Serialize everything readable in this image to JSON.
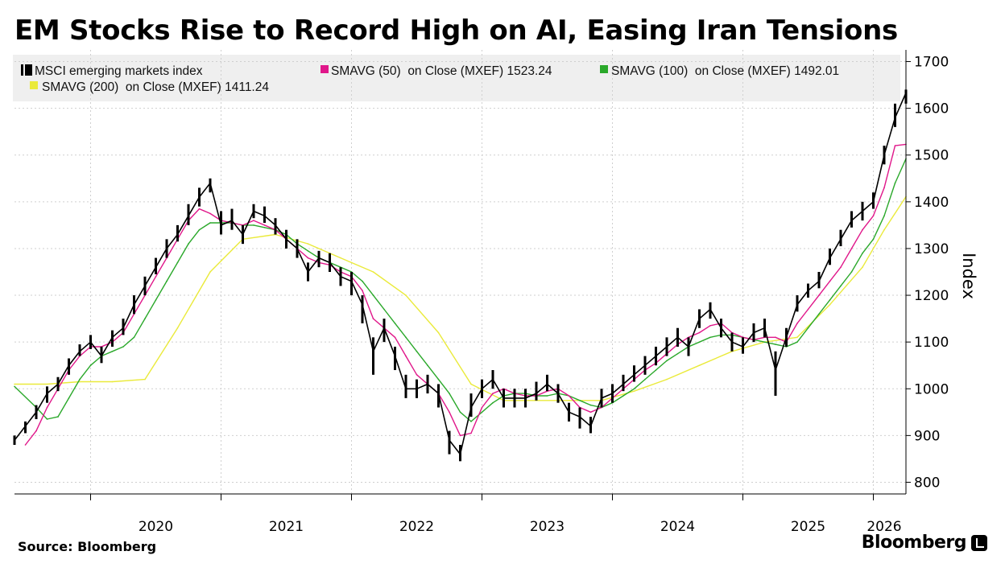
{
  "title": "EM Stocks Rise to Record High on AI, Easing Iran Tensions",
  "source": "Source: Bloomberg",
  "brand": "Bloomberg",
  "chart_data": {
    "type": "line",
    "title": "EM Stocks Rise to Record High on AI, Easing Iran Tensions",
    "ylabel": "Index",
    "xlabel": "",
    "ylim": [
      775,
      1725
    ],
    "y_ticks": [
      800,
      900,
      1000,
      1100,
      1200,
      1300,
      1400,
      1500,
      1600,
      1700
    ],
    "x_ticks": [
      "2020",
      "2021",
      "2022",
      "2023",
      "2024",
      "2025",
      "2026"
    ],
    "xlim": [
      "2019-06",
      "2026-04"
    ],
    "grid": true,
    "legend_position": "top",
    "legend": [
      "MSCI emerging markets index",
      "SMAVG (50)  on Close (MXEF) 1523.24",
      "SMAVG (100)  on Close (MXEF) 1492.01",
      "SMAVG (200)  on Close (MXEF) 1411.24"
    ],
    "series": [
      {
        "name": "MSCI emerging markets index",
        "color": "#000000",
        "x": [
          "2019-06",
          "2019-07",
          "2019-08",
          "2019-09",
          "2019-10",
          "2019-11",
          "2019-12",
          "2020-01",
          "2020-02",
          "2020-03",
          "2020-04",
          "2020-05",
          "2020-06",
          "2020-07",
          "2020-08",
          "2020-09",
          "2020-10",
          "2020-11",
          "2020-12",
          "2021-01",
          "2021-02",
          "2021-03",
          "2021-04",
          "2021-05",
          "2021-06",
          "2021-07",
          "2021-08",
          "2021-09",
          "2021-10",
          "2021-11",
          "2021-12",
          "2022-01",
          "2022-02",
          "2022-03",
          "2022-04",
          "2022-05",
          "2022-06",
          "2022-07",
          "2022-08",
          "2022-09",
          "2022-10",
          "2022-11",
          "2022-12",
          "2023-01",
          "2023-02",
          "2023-03",
          "2023-04",
          "2023-05",
          "2023-06",
          "2023-07",
          "2023-08",
          "2023-09",
          "2023-10",
          "2023-11",
          "2023-12",
          "2024-01",
          "2024-02",
          "2024-03",
          "2024-04",
          "2024-05",
          "2024-06",
          "2024-07",
          "2024-08",
          "2024-09",
          "2024-10",
          "2024-11",
          "2024-12",
          "2025-01",
          "2025-02",
          "2025-03",
          "2025-04",
          "2025-05",
          "2025-06",
          "2025-07",
          "2025-08",
          "2025-09",
          "2025-10",
          "2025-11",
          "2025-12",
          "2026-01",
          "2026-02",
          "2026-03",
          "2026-04"
        ],
        "values": [
          890,
          920,
          950,
          990,
          1010,
          1050,
          1080,
          1100,
          1070,
          1110,
          1130,
          1180,
          1220,
          1260,
          1300,
          1330,
          1370,
          1410,
          1440,
          1350,
          1360,
          1330,
          1380,
          1370,
          1350,
          1320,
          1300,
          1250,
          1280,
          1270,
          1240,
          1230,
          1180,
          1080,
          1130,
          1070,
          1000,
          1000,
          1010,
          990,
          890,
          860,
          960,
          1000,
          1020,
          980,
          980,
          980,
          990,
          1010,
          990,
          950,
          940,
          920,
          980,
          990,
          1010,
          1030,
          1050,
          1070,
          1090,
          1110,
          1090,
          1150,
          1170,
          1130,
          1100,
          1090,
          1120,
          1130,
          1040,
          1110,
          1180,
          1210,
          1230,
          1280,
          1320,
          1360,
          1380,
          1400,
          1500,
          1580,
          1633
        ],
        "range": [
          [
            880,
            900
          ],
          [
            905,
            930
          ],
          [
            935,
            965
          ],
          [
            970,
            1005
          ],
          [
            995,
            1025
          ],
          [
            1030,
            1065
          ],
          [
            1070,
            1095
          ],
          [
            1085,
            1115
          ],
          [
            1055,
            1090
          ],
          [
            1090,
            1125
          ],
          [
            1115,
            1150
          ],
          [
            1160,
            1200
          ],
          [
            1200,
            1240
          ],
          [
            1245,
            1280
          ],
          [
            1280,
            1320
          ],
          [
            1315,
            1350
          ],
          [
            1350,
            1395
          ],
          [
            1390,
            1430
          ],
          [
            1420,
            1450
          ],
          [
            1330,
            1380
          ],
          [
            1340,
            1385
          ],
          [
            1310,
            1350
          ],
          [
            1365,
            1395
          ],
          [
            1355,
            1390
          ],
          [
            1330,
            1365
          ],
          [
            1300,
            1340
          ],
          [
            1280,
            1320
          ],
          [
            1230,
            1270
          ],
          [
            1260,
            1295
          ],
          [
            1250,
            1290
          ],
          [
            1220,
            1260
          ],
          [
            1200,
            1250
          ],
          [
            1140,
            1200
          ],
          [
            1030,
            1110
          ],
          [
            1100,
            1150
          ],
          [
            1040,
            1090
          ],
          [
            980,
            1030
          ],
          [
            980,
            1020
          ],
          [
            990,
            1030
          ],
          [
            960,
            1010
          ],
          [
            860,
            910
          ],
          [
            845,
            880
          ],
          [
            940,
            990
          ],
          [
            980,
            1020
          ],
          [
            1000,
            1040
          ],
          [
            960,
            1000
          ],
          [
            960,
            1000
          ],
          [
            960,
            1000
          ],
          [
            975,
            1015
          ],
          [
            995,
            1030
          ],
          [
            970,
            1010
          ],
          [
            930,
            970
          ],
          [
            915,
            960
          ],
          [
            905,
            940
          ],
          [
            960,
            1000
          ],
          [
            970,
            1010
          ],
          [
            995,
            1030
          ],
          [
            1015,
            1050
          ],
          [
            1030,
            1070
          ],
          [
            1050,
            1090
          ],
          [
            1070,
            1110
          ],
          [
            1090,
            1130
          ],
          [
            1070,
            1110
          ],
          [
            1130,
            1170
          ],
          [
            1150,
            1185
          ],
          [
            1110,
            1150
          ],
          [
            1080,
            1120
          ],
          [
            1075,
            1110
          ],
          [
            1100,
            1140
          ],
          [
            1110,
            1150
          ],
          [
            985,
            1080
          ],
          [
            1090,
            1130
          ],
          [
            1165,
            1200
          ],
          [
            1195,
            1225
          ],
          [
            1215,
            1250
          ],
          [
            1265,
            1300
          ],
          [
            1305,
            1340
          ],
          [
            1345,
            1380
          ],
          [
            1360,
            1400
          ],
          [
            1385,
            1420
          ],
          [
            1480,
            1520
          ],
          [
            1560,
            1610
          ],
          [
            1610,
            1640
          ]
        ]
      },
      {
        "name": "SMAVG (50)  on Close (MXEF) 1523.24",
        "color": "#e0178a",
        "x": [
          "2019-07",
          "2019-08",
          "2019-09",
          "2019-10",
          "2019-11",
          "2019-12",
          "2020-01",
          "2020-02",
          "2020-03",
          "2020-04",
          "2020-05",
          "2020-06",
          "2020-07",
          "2020-08",
          "2020-09",
          "2020-10",
          "2020-11",
          "2020-12",
          "2021-01",
          "2021-02",
          "2021-03",
          "2021-04",
          "2021-05",
          "2021-06",
          "2021-07",
          "2021-08",
          "2021-09",
          "2021-10",
          "2021-11",
          "2021-12",
          "2022-01",
          "2022-02",
          "2022-03",
          "2022-04",
          "2022-05",
          "2022-06",
          "2022-07",
          "2022-08",
          "2022-09",
          "2022-10",
          "2022-11",
          "2022-12",
          "2023-01",
          "2023-02",
          "2023-03",
          "2023-04",
          "2023-05",
          "2023-06",
          "2023-07",
          "2023-08",
          "2023-09",
          "2023-10",
          "2023-11",
          "2023-12",
          "2024-01",
          "2024-02",
          "2024-03",
          "2024-04",
          "2024-05",
          "2024-06",
          "2024-07",
          "2024-08",
          "2024-09",
          "2024-10",
          "2024-11",
          "2024-12",
          "2025-01",
          "2025-02",
          "2025-03",
          "2025-04",
          "2025-05",
          "2025-06",
          "2025-07",
          "2025-08",
          "2025-09",
          "2025-10",
          "2025-11",
          "2025-12",
          "2026-01",
          "2026-02",
          "2026-03",
          "2026-04"
        ],
        "values": [
          880,
          910,
          960,
          1000,
          1040,
          1070,
          1090,
          1090,
          1100,
          1120,
          1160,
          1200,
          1240,
          1280,
          1320,
          1360,
          1385,
          1375,
          1360,
          1355,
          1350,
          1360,
          1350,
          1340,
          1320,
          1300,
          1280,
          1270,
          1265,
          1250,
          1240,
          1210,
          1150,
          1130,
          1110,
          1070,
          1030,
          1010,
          990,
          950,
          900,
          905,
          960,
          990,
          1000,
          990,
          985,
          985,
          995,
          1000,
          985,
          960,
          950,
          960,
          980,
          1000,
          1020,
          1040,
          1055,
          1075,
          1095,
          1110,
          1120,
          1135,
          1140,
          1120,
          1110,
          1105,
          1110,
          1110,
          1100,
          1140,
          1170,
          1200,
          1230,
          1260,
          1300,
          1340,
          1370,
          1430,
          1520,
          1523
        ]
      },
      {
        "name": "SMAVG (100)  on Close (MXEF) 1492.01",
        "color": "#2aa82a",
        "x": [
          "2019-06",
          "2019-08",
          "2019-09",
          "2019-10",
          "2019-11",
          "2019-12",
          "2020-01",
          "2020-02",
          "2020-03",
          "2020-04",
          "2020-05",
          "2020-06",
          "2020-07",
          "2020-08",
          "2020-09",
          "2020-10",
          "2020-11",
          "2020-12",
          "2021-01",
          "2021-02",
          "2021-03",
          "2021-04",
          "2021-05",
          "2021-06",
          "2021-07",
          "2021-08",
          "2021-09",
          "2021-10",
          "2021-11",
          "2021-12",
          "2022-01",
          "2022-02",
          "2022-03",
          "2022-04",
          "2022-05",
          "2022-06",
          "2022-07",
          "2022-08",
          "2022-09",
          "2022-10",
          "2022-11",
          "2022-12",
          "2023-01",
          "2023-02",
          "2023-03",
          "2023-04",
          "2023-05",
          "2023-06",
          "2023-07",
          "2023-08",
          "2023-09",
          "2023-10",
          "2023-11",
          "2023-12",
          "2024-01",
          "2024-02",
          "2024-03",
          "2024-04",
          "2024-05",
          "2024-06",
          "2024-07",
          "2024-08",
          "2024-09",
          "2024-10",
          "2024-11",
          "2024-12",
          "2025-01",
          "2025-02",
          "2025-03",
          "2025-04",
          "2025-05",
          "2025-06",
          "2025-07",
          "2025-08",
          "2025-09",
          "2025-10",
          "2025-11",
          "2025-12",
          "2026-01",
          "2026-02",
          "2026-03",
          "2026-04"
        ],
        "values": [
          1005,
          960,
          935,
          940,
          980,
          1020,
          1050,
          1070,
          1080,
          1090,
          1110,
          1150,
          1190,
          1230,
          1270,
          1310,
          1340,
          1355,
          1355,
          1355,
          1350,
          1350,
          1345,
          1340,
          1330,
          1310,
          1295,
          1280,
          1270,
          1260,
          1250,
          1230,
          1200,
          1170,
          1140,
          1110,
          1080,
          1050,
          1020,
          990,
          950,
          930,
          950,
          970,
          985,
          990,
          990,
          985,
          985,
          990,
          985,
          975,
          965,
          960,
          970,
          985,
          1000,
          1020,
          1040,
          1060,
          1075,
          1090,
          1100,
          1110,
          1115,
          1115,
          1110,
          1105,
          1100,
          1095,
          1090,
          1100,
          1130,
          1160,
          1190,
          1220,
          1250,
          1290,
          1320,
          1370,
          1440,
          1492
        ]
      },
      {
        "name": "SMAVG (200)  on Close (MXEF) 1411.24",
        "color": "#eaea3a",
        "x": [
          "2019-06",
          "2019-09",
          "2019-12",
          "2020-03",
          "2020-06",
          "2020-09",
          "2020-12",
          "2021-03",
          "2021-06",
          "2021-09",
          "2021-12",
          "2022-03",
          "2022-06",
          "2022-09",
          "2022-12",
          "2023-03",
          "2023-06",
          "2023-09",
          "2023-12",
          "2024-03",
          "2024-06",
          "2024-09",
          "2024-12",
          "2025-03",
          "2025-06",
          "2025-09",
          "2025-12",
          "2026-02",
          "2026-04"
        ],
        "values": [
          1010,
          1010,
          1015,
          1015,
          1020,
          1130,
          1250,
          1320,
          1330,
          1310,
          1280,
          1250,
          1200,
          1120,
          1010,
          975,
          975,
          975,
          975,
          995,
          1020,
          1050,
          1080,
          1100,
          1110,
          1180,
          1260,
          1340,
          1411
        ]
      }
    ]
  }
}
